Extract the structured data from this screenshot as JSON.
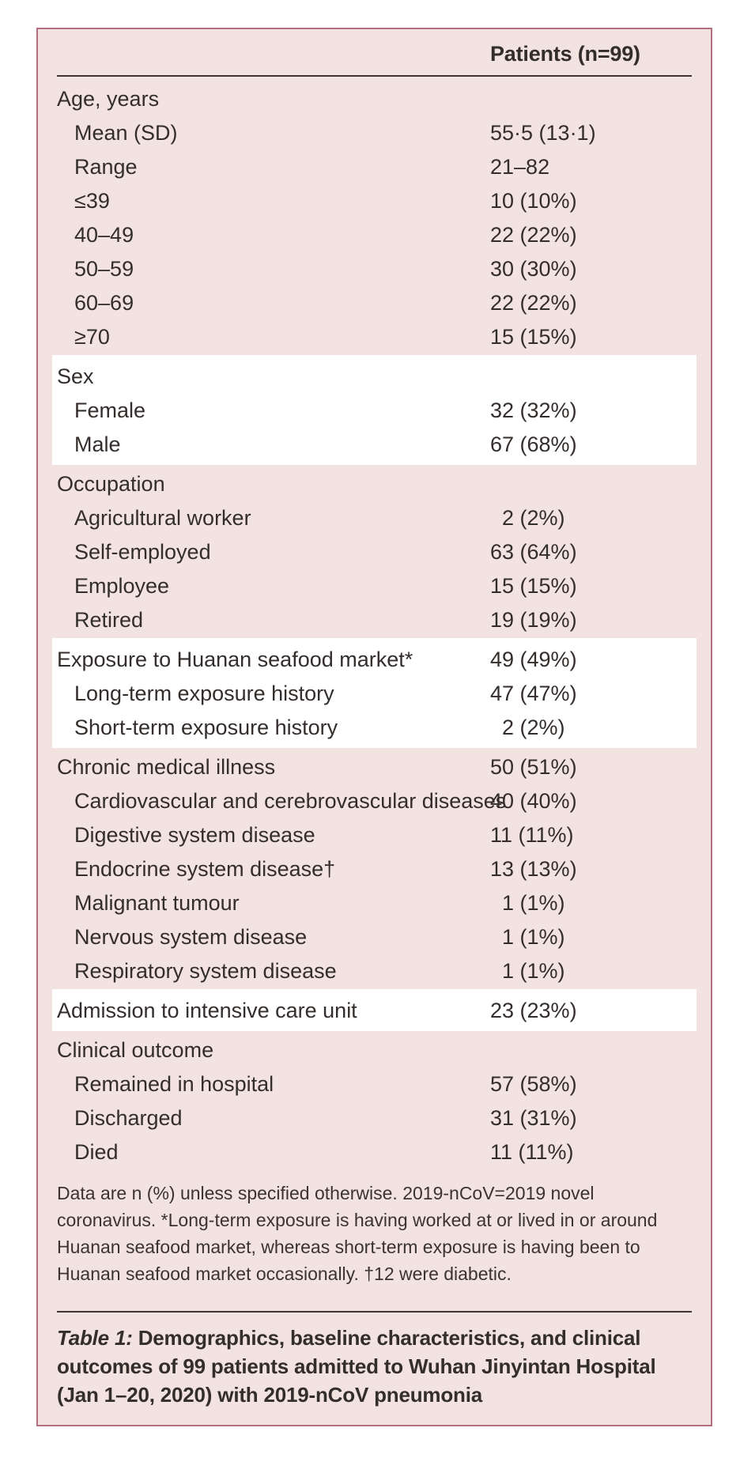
{
  "table": {
    "column_header": "Patients (n=99)",
    "sections": [
      {
        "highlight": false,
        "rows": [
          {
            "label": "Age, years",
            "value": "",
            "indent": 0
          },
          {
            "label": "Mean (SD)",
            "value": "55·5 (13·1)",
            "indent": 1
          },
          {
            "label": "Range",
            "value": "21–82",
            "indent": 1
          },
          {
            "label": "≤39",
            "value": "10 (10%)",
            "indent": 1
          },
          {
            "label": "40–49",
            "value": "22 (22%)",
            "indent": 1
          },
          {
            "label": "50–59",
            "value": "30 (30%)",
            "indent": 1
          },
          {
            "label": "60–69",
            "value": "22 (22%)",
            "indent": 1
          },
          {
            "label": "≥70",
            "value": "15 (15%)",
            "indent": 1
          }
        ]
      },
      {
        "highlight": true,
        "rows": [
          {
            "label": "Sex",
            "value": "",
            "indent": 0
          },
          {
            "label": "Female",
            "value": "32 (32%)",
            "indent": 1
          },
          {
            "label": "Male",
            "value": "67 (68%)",
            "indent": 1
          }
        ]
      },
      {
        "highlight": false,
        "rows": [
          {
            "label": "Occupation",
            "value": "",
            "indent": 0
          },
          {
            "label": "Agricultural worker",
            "value": "2 (2%)",
            "indent": 1
          },
          {
            "label": "Self-employed",
            "value": "63 (64%)",
            "indent": 1
          },
          {
            "label": "Employee",
            "value": "15 (15%)",
            "indent": 1
          },
          {
            "label": "Retired",
            "value": "19 (19%)",
            "indent": 1
          }
        ]
      },
      {
        "highlight": true,
        "rows": [
          {
            "label": "Exposure to Huanan seafood market*",
            "value": "49 (49%)",
            "indent": 0
          },
          {
            "label": "Long-term exposure history",
            "value": "47 (47%)",
            "indent": 1
          },
          {
            "label": "Short-term exposure history",
            "value": "2 (2%)",
            "indent": 1
          }
        ]
      },
      {
        "highlight": false,
        "rows": [
          {
            "label": "Chronic medical illness",
            "value": "50 (51%)",
            "indent": 0
          },
          {
            "label": "Cardiovascular and cerebrovascular diseases",
            "value": "40 (40%)",
            "indent": 1
          },
          {
            "label": "Digestive system disease",
            "value": "11 (11%)",
            "indent": 1
          },
          {
            "label": "Endocrine system disease†",
            "value": "13 (13%)",
            "indent": 1
          },
          {
            "label": "Malignant tumour",
            "value": "1 (1%)",
            "indent": 1
          },
          {
            "label": "Nervous system disease",
            "value": "1 (1%)",
            "indent": 1
          },
          {
            "label": "Respiratory system disease",
            "value": "1 (1%)",
            "indent": 1
          }
        ]
      },
      {
        "highlight": true,
        "rows": [
          {
            "label": "Admission to intensive care unit",
            "value": "23 (23%)",
            "indent": 0
          }
        ]
      },
      {
        "highlight": false,
        "rows": [
          {
            "label": "Clinical outcome",
            "value": "",
            "indent": 0
          },
          {
            "label": "Remained in hospital",
            "value": "57 (58%)",
            "indent": 1
          },
          {
            "label": "Discharged",
            "value": "31 (31%)",
            "indent": 1
          },
          {
            "label": "Died",
            "value": "11 (11%)",
            "indent": 1
          }
        ]
      }
    ],
    "footnote": "Data are n (%) unless specified otherwise. 2019-nCoV=2019 novel coronavirus. *Long-term exposure is having worked at or lived in or around Huanan seafood market, whereas short-term exposure is having been to Huanan seafood market occasionally. †12 were diabetic.",
    "caption_label": "Table 1:",
    "caption_text": "Demographics, baseline characteristics, and clinical outcomes of 99 patients admitted to Wuhan Jinyintan Hospital (Jan 1–20, 2020) with 2019-nCoV pneumonia"
  },
  "colors": {
    "table_background": "#f2e3e0",
    "highlight_band": "#ffffff",
    "frame_border": "#b36f7e",
    "rule": "#3d3734",
    "text": "#332d2b"
  }
}
